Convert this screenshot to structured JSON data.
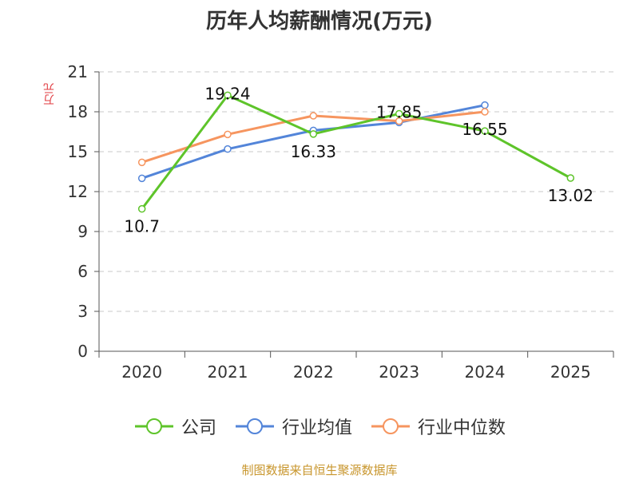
{
  "chart_data": {
    "type": "line",
    "title": "历年人均薪酬情况(万元)",
    "ylabel": "万元",
    "xlabel": "",
    "categories": [
      "2020",
      "2021",
      "2022",
      "2023",
      "2024",
      "2025"
    ],
    "ylim": [
      0,
      21
    ],
    "yticks": [
      0,
      3,
      6,
      9,
      12,
      15,
      18,
      21
    ],
    "grid": true,
    "legend_position": "bottom",
    "series": [
      {
        "name": "公司",
        "color": "#5ec42a",
        "labels": true,
        "values": [
          10.7,
          19.24,
          16.33,
          17.85,
          16.55,
          13.02
        ]
      },
      {
        "name": "行业均值",
        "color": "#5385d9",
        "labels": false,
        "values": [
          13.0,
          15.2,
          16.6,
          17.2,
          18.5,
          null
        ]
      },
      {
        "name": "行业中位数",
        "color": "#f6955f",
        "labels": false,
        "values": [
          14.2,
          16.3,
          17.7,
          17.3,
          18.0,
          null
        ]
      }
    ]
  },
  "source_text": "制图数据来自恒生聚源数据库"
}
